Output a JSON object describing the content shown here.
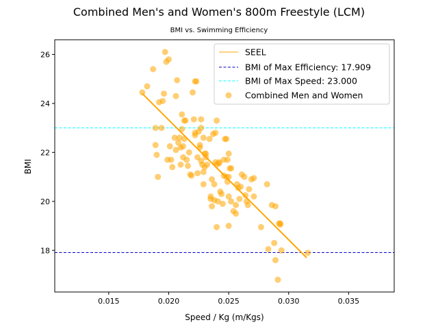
{
  "chart_data": {
    "type": "scatter",
    "title": "Combined Men's and Women's 800m Freestyle (LCM)",
    "subtitle": "BMI vs. Swimming Efficiency",
    "xlabel": "Speed / Kg (m/Kgs)",
    "ylabel": "BMI",
    "xlim": [
      0.0105,
      0.0388
    ],
    "ylim": [
      16.3,
      26.6
    ],
    "xticks": [
      0.015,
      0.02,
      0.025,
      0.03,
      0.035
    ],
    "xtick_labels": [
      "0.015",
      "0.020",
      "0.025",
      "0.030",
      "0.035"
    ],
    "yticks": [
      18,
      20,
      22,
      24,
      26
    ],
    "ytick_labels": [
      "18",
      "20",
      "22",
      "24",
      "26"
    ],
    "grid": false,
    "legend_position": "top-right",
    "colors": {
      "seel": "#ffa500",
      "efficiency_line": "#0000cc",
      "speed_line": "#00ffff",
      "points": "#ffa500"
    },
    "seel_line": {
      "name": "SEEL",
      "x": [
        0.0178,
        0.0315
      ],
      "y": [
        24.4,
        17.7
      ]
    },
    "hlines": [
      {
        "name": "BMI of Max Efficiency: 17.909",
        "y": 17.909,
        "style": "dashed"
      },
      {
        "name": "BMI of Max Speed: 23.000",
        "y": 23.0,
        "style": "dashed"
      }
    ],
    "series": [
      {
        "name": "Combined Men and Women",
        "points": [
          [
            0.0178,
            24.45
          ],
          [
            0.0182,
            24.7
          ],
          [
            0.0187,
            25.4
          ],
          [
            0.0189,
            23.0
          ],
          [
            0.0189,
            22.3
          ],
          [
            0.019,
            21.9
          ],
          [
            0.0191,
            21.0
          ],
          [
            0.0192,
            24.05
          ],
          [
            0.0194,
            23.0
          ],
          [
            0.0195,
            24.1
          ],
          [
            0.0196,
            24.4
          ],
          [
            0.0197,
            26.1
          ],
          [
            0.0198,
            25.7
          ],
          [
            0.0199,
            21.7
          ],
          [
            0.02,
            25.8
          ],
          [
            0.0201,
            22.25
          ],
          [
            0.0202,
            21.7
          ],
          [
            0.0203,
            21.4
          ],
          [
            0.0205,
            22.6
          ],
          [
            0.0206,
            22.1
          ],
          [
            0.0206,
            24.3
          ],
          [
            0.0207,
            24.95
          ],
          [
            0.0208,
            22.4
          ],
          [
            0.0209,
            22.6
          ],
          [
            0.021,
            22.2
          ],
          [
            0.021,
            21.5
          ],
          [
            0.0211,
            23.55
          ],
          [
            0.0211,
            22.95
          ],
          [
            0.0212,
            22.25
          ],
          [
            0.0212,
            21.8
          ],
          [
            0.0213,
            23.3
          ],
          [
            0.0213,
            22.55
          ],
          [
            0.0214,
            23.3
          ],
          [
            0.0215,
            21.7
          ],
          [
            0.0216,
            21.45
          ],
          [
            0.0217,
            22.0
          ],
          [
            0.0218,
            21.1
          ],
          [
            0.0219,
            21.05
          ],
          [
            0.022,
            24.45
          ],
          [
            0.0221,
            23.35
          ],
          [
            0.0222,
            22.7
          ],
          [
            0.0222,
            22.8
          ],
          [
            0.0222,
            24.9
          ],
          [
            0.0223,
            24.9
          ],
          [
            0.0224,
            21.8
          ],
          [
            0.0224,
            21.15
          ],
          [
            0.0225,
            22.85
          ],
          [
            0.0226,
            22.3
          ],
          [
            0.0226,
            22.2
          ],
          [
            0.0227,
            23.35
          ],
          [
            0.0227,
            23.0
          ],
          [
            0.0227,
            21.65
          ],
          [
            0.0228,
            21.5
          ],
          [
            0.0229,
            21.2
          ],
          [
            0.0229,
            20.7
          ],
          [
            0.0229,
            22.6
          ],
          [
            0.023,
            21.95
          ],
          [
            0.023,
            21.4
          ],
          [
            0.0231,
            21.95
          ],
          [
            0.0231,
            21.8
          ],
          [
            0.0232,
            21.5
          ],
          [
            0.0234,
            22.55
          ],
          [
            0.0235,
            20.2
          ],
          [
            0.0235,
            20.1
          ],
          [
            0.0236,
            19.8
          ],
          [
            0.0236,
            20.9
          ],
          [
            0.0237,
            22.75
          ],
          [
            0.0238,
            20.7
          ],
          [
            0.0238,
            20.05
          ],
          [
            0.0239,
            22.8
          ],
          [
            0.0239,
            21.6
          ],
          [
            0.024,
            23.3
          ],
          [
            0.024,
            21.5
          ],
          [
            0.024,
            18.95
          ],
          [
            0.0241,
            20.0
          ],
          [
            0.0242,
            21.6
          ],
          [
            0.0242,
            21.55
          ],
          [
            0.0243,
            20.4
          ],
          [
            0.0244,
            20.3
          ],
          [
            0.0245,
            19.9
          ],
          [
            0.0246,
            21.7
          ],
          [
            0.0246,
            21.05
          ],
          [
            0.0247,
            22.55
          ],
          [
            0.0248,
            21.0
          ],
          [
            0.0248,
            22.55
          ],
          [
            0.0249,
            21.7
          ],
          [
            0.0249,
            20.8
          ],
          [
            0.025,
            21.95
          ],
          [
            0.025,
            21.0
          ],
          [
            0.025,
            20.2
          ],
          [
            0.025,
            19.0
          ],
          [
            0.0251,
            21.35
          ],
          [
            0.0252,
            20.0
          ],
          [
            0.0252,
            21.35
          ],
          [
            0.0254,
            19.6
          ],
          [
            0.0256,
            19.5
          ],
          [
            0.0256,
            19.85
          ],
          [
            0.0257,
            20.7
          ],
          [
            0.0258,
            20.55
          ],
          [
            0.0259,
            20.1
          ],
          [
            0.026,
            20.6
          ],
          [
            0.0261,
            21.1
          ],
          [
            0.0263,
            21.0
          ],
          [
            0.0264,
            20.25
          ],
          [
            0.0265,
            20.0
          ],
          [
            0.0266,
            19.85
          ],
          [
            0.0267,
            20.5
          ],
          [
            0.0269,
            20.9
          ],
          [
            0.0271,
            20.2
          ],
          [
            0.0271,
            20.95
          ],
          [
            0.0277,
            18.95
          ],
          [
            0.0282,
            20.7
          ],
          [
            0.0283,
            18.05
          ],
          [
            0.0286,
            19.85
          ],
          [
            0.0288,
            18.3
          ],
          [
            0.0289,
            19.8
          ],
          [
            0.0289,
            17.6
          ],
          [
            0.0291,
            16.8
          ],
          [
            0.0292,
            19.1
          ],
          [
            0.0293,
            19.05
          ],
          [
            0.0293,
            19.1
          ],
          [
            0.0294,
            18.0
          ],
          [
            0.0316,
            17.9
          ]
        ]
      }
    ]
  }
}
